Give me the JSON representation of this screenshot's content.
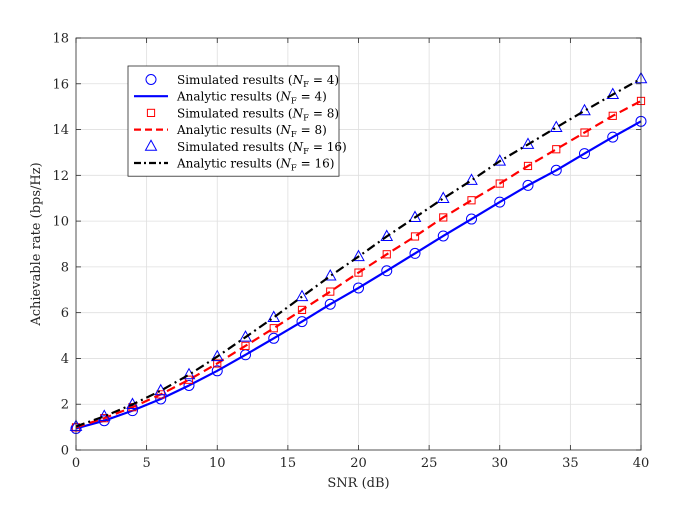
{
  "chart_data": {
    "type": "line",
    "title": "",
    "xlabel": "SNR (dB)",
    "ylabel": "Achievable rate (bps/Hz)",
    "xlim": [
      0,
      40
    ],
    "ylim": [
      0,
      18
    ],
    "xticks": [
      0,
      5,
      10,
      15,
      20,
      25,
      30,
      35,
      40
    ],
    "yticks": [
      0,
      2,
      4,
      6,
      8,
      10,
      12,
      14,
      16,
      18
    ],
    "grid": true,
    "legend_position": "upper-left",
    "x": [
      0,
      2,
      4,
      6,
      8,
      10,
      12,
      14,
      16,
      18,
      20,
      22,
      24,
      26,
      28,
      30,
      32,
      34,
      36,
      38,
      40
    ],
    "series": [
      {
        "name": "Simulated results (N_F = 4)",
        "kind": "markers",
        "marker": "circle",
        "color": "#0000ff",
        "values": [
          0.94,
          1.28,
          1.72,
          2.23,
          2.82,
          3.46,
          4.16,
          4.88,
          5.61,
          6.37,
          7.08,
          7.83,
          8.59,
          9.35,
          10.09,
          10.83,
          11.56,
          12.22,
          12.95,
          13.67,
          14.36
        ]
      },
      {
        "name": "Analytic results (N_F = 4)",
        "kind": "line",
        "dash": "solid",
        "color": "#0000ff",
        "values": [
          0.94,
          1.28,
          1.72,
          2.23,
          2.82,
          3.46,
          4.16,
          4.88,
          5.61,
          6.37,
          7.08,
          7.83,
          8.59,
          9.35,
          10.09,
          10.83,
          11.56,
          12.22,
          12.95,
          13.67,
          14.36
        ]
      },
      {
        "name": "Simulated results (N_F = 8)",
        "kind": "markers",
        "marker": "square",
        "color": "#ff0000",
        "values": [
          0.99,
          1.39,
          1.87,
          2.43,
          3.07,
          3.78,
          4.55,
          5.32,
          6.12,
          6.92,
          7.75,
          8.55,
          9.33,
          10.16,
          10.91,
          11.64,
          12.41,
          13.14,
          13.87,
          14.6,
          15.25
        ]
      },
      {
        "name": "Analytic results (N_F = 8)",
        "kind": "line",
        "dash": "dashed",
        "color": "#ff0000",
        "values": [
          0.99,
          1.39,
          1.87,
          2.43,
          3.07,
          3.78,
          4.55,
          5.32,
          6.12,
          6.92,
          7.75,
          8.55,
          9.33,
          10.16,
          10.91,
          11.64,
          12.41,
          13.14,
          13.87,
          14.6,
          15.25
        ]
      },
      {
        "name": "Simulated results (N_F = 16)",
        "kind": "markers",
        "marker": "triangle",
        "color": "#0000ff",
        "values": [
          1.03,
          1.47,
          1.99,
          2.59,
          3.29,
          4.08,
          4.93,
          5.79,
          6.7,
          7.6,
          8.45,
          9.33,
          10.16,
          10.99,
          11.78,
          12.62,
          13.35,
          14.09,
          14.82,
          15.53,
          16.22
        ]
      },
      {
        "name": "Analytic results (N_F = 16)",
        "kind": "line",
        "dash": "dashdot",
        "color": "#000000",
        "values": [
          1.03,
          1.47,
          1.99,
          2.59,
          3.29,
          4.08,
          4.93,
          5.79,
          6.7,
          7.6,
          8.45,
          9.33,
          10.16,
          10.99,
          11.78,
          12.62,
          13.35,
          14.09,
          14.82,
          15.53,
          16.22
        ]
      }
    ],
    "legend": [
      {
        "prefix": "Simulated results (",
        "sub": "F",
        "suffix": " = 4)",
        "series": 0
      },
      {
        "prefix": "Analytic results (",
        "sub": "F",
        "suffix": " = 4)",
        "series": 1
      },
      {
        "prefix": "Simulated results (",
        "sub": "F",
        "suffix": " = 8)",
        "series": 2
      },
      {
        "prefix": "Analytic results (",
        "sub": "F",
        "suffix": " = 8)",
        "series": 3
      },
      {
        "prefix": "Simulated results (",
        "sub": "F",
        "suffix": " = 16)",
        "series": 4
      },
      {
        "prefix": "Analytic results (",
        "sub": "F",
        "suffix": " = 16)",
        "series": 5
      }
    ]
  }
}
